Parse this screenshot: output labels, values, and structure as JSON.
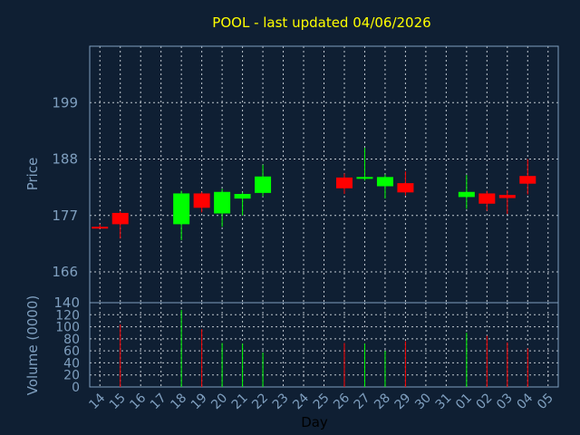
{
  "chart_data": {
    "type": "candlestick",
    "title": "POOL - last updated 04/06/2026",
    "price_axis": {
      "label": "Price",
      "ticks": [
        199,
        188,
        177,
        166
      ],
      "ylim": [
        160,
        210
      ]
    },
    "volume_axis": {
      "label": "Volume (0000)",
      "ticks": [
        140,
        120,
        100,
        80,
        60,
        40,
        20,
        0
      ],
      "ylim": [
        0,
        140
      ]
    },
    "x_axis": {
      "label": "Day",
      "ticks": [
        "14",
        "15",
        "16",
        "17",
        "18",
        "19",
        "20",
        "21",
        "22",
        "23",
        "24",
        "25",
        "26",
        "27",
        "28",
        "29",
        "30",
        "31",
        "01",
        "02",
        "03",
        "04",
        "05"
      ]
    },
    "candles": [
      {
        "day": "14",
        "open": 174.8,
        "high": 175.3,
        "low": 174.5,
        "close": 174.5,
        "volume": 0
      },
      {
        "day": "15",
        "open": 177.5,
        "high": 177.8,
        "low": 172.5,
        "close": 175.3,
        "volume": 104
      },
      {
        "day": "18",
        "open": 175.3,
        "high": 181.8,
        "low": 172.2,
        "close": 181.3,
        "volume": 128
      },
      {
        "day": "19",
        "open": 181.3,
        "high": 181.6,
        "low": 177.6,
        "close": 178.5,
        "volume": 96
      },
      {
        "day": "20",
        "open": 177.4,
        "high": 182.2,
        "low": 174.8,
        "close": 181.6,
        "volume": 73
      },
      {
        "day": "21",
        "open": 180.3,
        "high": 181.5,
        "low": 177.0,
        "close": 181.2,
        "volume": 72
      },
      {
        "day": "22",
        "open": 181.4,
        "high": 186.9,
        "low": 180.7,
        "close": 184.6,
        "volume": 57
      },
      {
        "day": "26",
        "open": 184.4,
        "high": 185.2,
        "low": 181.2,
        "close": 182.3,
        "volume": 73
      },
      {
        "day": "27",
        "open": 184.2,
        "high": 190.2,
        "low": 183.8,
        "close": 184.5,
        "volume": 72
      },
      {
        "day": "28",
        "open": 182.7,
        "high": 185.0,
        "low": 180.3,
        "close": 184.5,
        "volume": 60
      },
      {
        "day": "29",
        "open": 183.3,
        "high": 185.6,
        "low": 180.9,
        "close": 181.5,
        "volume": 76
      },
      {
        "day": "01",
        "open": 180.6,
        "high": 184.9,
        "low": 178.3,
        "close": 181.6,
        "volume": 90
      },
      {
        "day": "02",
        "open": 181.3,
        "high": 181.8,
        "low": 177.9,
        "close": 179.3,
        "volume": 85
      },
      {
        "day": "03",
        "open": 181.0,
        "high": 181.9,
        "low": 177.3,
        "close": 180.4,
        "volume": 74
      },
      {
        "day": "04",
        "open": 184.7,
        "high": 188.0,
        "low": 181.1,
        "close": 183.2,
        "volume": 64
      }
    ],
    "colors": {
      "up": "#00ff00",
      "down": "#ff0000",
      "background": "#0f1f33",
      "axes": "#7f9fbf",
      "title": "#ffff00",
      "grid": "#c0c8d0"
    },
    "grid": true
  }
}
